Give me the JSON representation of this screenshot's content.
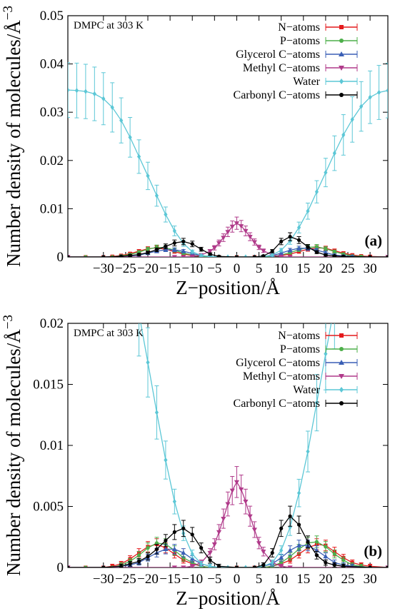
{
  "chart_data": [
    {
      "type": "line",
      "panel_label": "(a)",
      "annotation": "DMPC at 303 K",
      "xlabel": "Z−position/Å",
      "ylabel": "Number density of molecules/Å",
      "ylabel_exponent": "−3",
      "xlim": [
        -38,
        34
      ],
      "ylim": [
        0,
        0.05
      ],
      "xticks": [
        -30,
        -25,
        -20,
        -15,
        -10,
        -5,
        0,
        5,
        10,
        15,
        20,
        25,
        30
      ],
      "xtick_labels": [
        "−30",
        "−25",
        "−20",
        "−15",
        "−10",
        "−5",
        "0",
        "5",
        "10",
        "15",
        "20",
        "25",
        "30"
      ],
      "yticks": [
        0,
        0.01,
        0.02,
        0.03,
        0.04,
        0.05
      ],
      "ytick_labels": [
        "0",
        "0.01",
        "0.02",
        "0.03",
        "0.04",
        "0.05"
      ],
      "grid": false,
      "legend": "top-right",
      "error_bars": true
    },
    {
      "type": "line",
      "panel_label": "(b)",
      "annotation": "DMPC at 303 K",
      "xlabel": "Z−position/Å",
      "ylabel": "Number density of molecules/Å",
      "ylabel_exponent": "−3",
      "xlim": [
        -38,
        34
      ],
      "ylim": [
        0,
        0.02
      ],
      "xticks": [
        -30,
        -25,
        -20,
        -15,
        -10,
        -5,
        0,
        5,
        10,
        15,
        20,
        25,
        30
      ],
      "xtick_labels": [
        "−30",
        "−25",
        "−20",
        "−15",
        "−10",
        "−5",
        "0",
        "5",
        "10",
        "15",
        "20",
        "25",
        "30"
      ],
      "yticks": [
        0,
        0.005,
        0.01,
        0.015,
        0.02
      ],
      "ytick_labels": [
        "0",
        "0.005",
        "0.01",
        "0.015",
        "0.02"
      ],
      "grid": false,
      "legend": "top-right",
      "error_bars": true
    }
  ],
  "series": [
    {
      "name": "N−atoms",
      "color": "#e41a1c",
      "marker": "square",
      "x": [
        -38,
        -34,
        -30,
        -28,
        -26,
        -24,
        -22,
        -20,
        -18,
        -16,
        -14,
        -12,
        -10,
        -8,
        -6,
        -4,
        0,
        4,
        6,
        8,
        10,
        12,
        14,
        16,
        18,
        20,
        22,
        24,
        26,
        28,
        30,
        34
      ],
      "y": [
        0,
        0,
        0,
        0.0001,
        0.0003,
        0.0007,
        0.0012,
        0.0017,
        0.0019,
        0.0016,
        0.0011,
        0.0006,
        0.0003,
        0.0001,
        0,
        0,
        0,
        0,
        0,
        0.0001,
        0.0003,
        0.0006,
        0.0011,
        0.0016,
        0.0019,
        0.0018,
        0.0013,
        0.0008,
        0.0004,
        0.0002,
        0.0001,
        0
      ]
    },
    {
      "name": "P−atoms",
      "color": "#4daf4a",
      "marker": "circle",
      "x": [
        -38,
        -34,
        -30,
        -28,
        -26,
        -24,
        -22,
        -20,
        -18,
        -16,
        -14,
        -12,
        -10,
        -8,
        -6,
        -4,
        0,
        4,
        6,
        8,
        10,
        12,
        14,
        16,
        18,
        20,
        22,
        24,
        26,
        28,
        30,
        34
      ],
      "y": [
        0,
        0,
        0,
        0,
        0.0002,
        0.0005,
        0.001,
        0.0016,
        0.002,
        0.0019,
        0.0014,
        0.0008,
        0.0004,
        0.0001,
        0,
        0,
        0,
        0,
        0,
        0.0001,
        0.0004,
        0.0009,
        0.0015,
        0.002,
        0.0021,
        0.0017,
        0.0011,
        0.0006,
        0.0002,
        0.0001,
        0,
        0
      ]
    },
    {
      "name": "Glycerol C−atoms",
      "color": "#3a5fb5",
      "marker": "triangle-up",
      "x": [
        -38,
        -30,
        -26,
        -24,
        -22,
        -20,
        -18,
        -16,
        -14,
        -12,
        -10,
        -8,
        -6,
        -4,
        0,
        4,
        6,
        8,
        10,
        12,
        14,
        16,
        18,
        20,
        22,
        24,
        26,
        30,
        34
      ],
      "y": [
        0,
        0,
        0.0001,
        0.0002,
        0.0004,
        0.0008,
        0.0012,
        0.0015,
        0.0015,
        0.0012,
        0.0007,
        0.0003,
        0.0001,
        0,
        0,
        0,
        0.0001,
        0.0003,
        0.0008,
        0.0014,
        0.0018,
        0.0018,
        0.0014,
        0.0009,
        0.0004,
        0.0002,
        0.0001,
        0,
        0
      ]
    },
    {
      "name": "Methyl C−atoms",
      "color": "#b03a8a",
      "marker": "triangle-down",
      "x": [
        -38,
        -14,
        -12,
        -10,
        -8,
        -6,
        -5,
        -4,
        -3,
        -2,
        -1,
        0,
        1,
        2,
        3,
        4,
        5,
        6,
        8,
        10,
        12,
        34
      ],
      "y": [
        0,
        0,
        0,
        0.0001,
        0.0004,
        0.0012,
        0.0019,
        0.0029,
        0.004,
        0.0052,
        0.0063,
        0.007,
        0.0064,
        0.0054,
        0.0042,
        0.0031,
        0.002,
        0.0013,
        0.0004,
        0.0001,
        0,
        0
      ]
    },
    {
      "name": "Water",
      "color": "#5cc7d6",
      "marker": "diamond",
      "x": [
        -38,
        -36,
        -34,
        -32,
        -30,
        -28,
        -26,
        -24,
        -22,
        -20,
        -18,
        -16,
        -14,
        -12,
        -10,
        -8,
        -6,
        -4,
        -2,
        0,
        2,
        4,
        6,
        8,
        10,
        12,
        14,
        16,
        18,
        20,
        22,
        24,
        26,
        28,
        30,
        32,
        34
      ],
      "y": [
        0.0346,
        0.0345,
        0.0343,
        0.0338,
        0.0328,
        0.031,
        0.0283,
        0.0248,
        0.0208,
        0.0168,
        0.0127,
        0.0088,
        0.0054,
        0.0028,
        0.0011,
        0.0003,
        0.0001,
        0,
        0,
        0,
        0,
        0,
        0.0001,
        0.0004,
        0.0014,
        0.0033,
        0.0061,
        0.0095,
        0.0135,
        0.0175,
        0.0215,
        0.0253,
        0.0285,
        0.0312,
        0.0331,
        0.0341,
        0.0345
      ]
    },
    {
      "name": "Carbonyl C−atoms",
      "color": "#000000",
      "marker": "circle",
      "x": [
        -38,
        -30,
        -26,
        -24,
        -22,
        -20,
        -18,
        -16,
        -14,
        -12,
        -10,
        -8,
        -6,
        -4,
        0,
        4,
        6,
        8,
        10,
        12,
        14,
        16,
        18,
        20,
        22,
        24,
        30,
        34
      ],
      "y": [
        0,
        0,
        0.0001,
        0.0003,
        0.0005,
        0.0009,
        0.0015,
        0.0022,
        0.0029,
        0.0032,
        0.0027,
        0.0016,
        0.0006,
        0.0001,
        0,
        0,
        0.0002,
        0.0012,
        0.0032,
        0.0042,
        0.0035,
        0.0021,
        0.001,
        0.0004,
        0.0002,
        0.0001,
        0,
        0
      ]
    }
  ]
}
